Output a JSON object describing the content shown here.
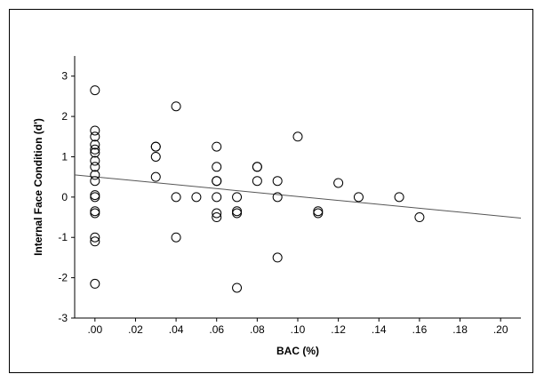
{
  "chart_data": {
    "type": "scatter",
    "title": "",
    "xlabel": "BAC (%)",
    "ylabel": "Internal Face Condition (d')",
    "xlim": [
      -0.01,
      0.21
    ],
    "ylim": [
      -3,
      3.5
    ],
    "x_ticks": [
      0,
      0.02,
      0.04,
      0.06,
      0.08,
      0.1,
      0.12,
      0.14,
      0.16,
      0.18,
      0.2
    ],
    "x_tick_labels": [
      ".00",
      ".02",
      ".04",
      ".06",
      ".08",
      ".10",
      ".12",
      ".14",
      ".16",
      ".18",
      ".20"
    ],
    "y_ticks": [
      -3,
      -2,
      -1,
      0,
      1,
      2,
      3
    ],
    "y_tick_labels": [
      "-3",
      "-2",
      "-1",
      "0",
      "1",
      "2",
      "3"
    ],
    "grid": false,
    "legend": "none",
    "marker_color": "#000000",
    "fit_line_color": "#555555",
    "fit_line": {
      "x": [
        -0.01,
        0.21
      ],
      "y": [
        0.55,
        -0.52
      ]
    },
    "points": [
      {
        "x": 0.0,
        "y": 2.65
      },
      {
        "x": 0.0,
        "y": 1.65
      },
      {
        "x": 0.0,
        "y": 1.5
      },
      {
        "x": 0.0,
        "y": 1.3
      },
      {
        "x": 0.0,
        "y": 1.18
      },
      {
        "x": 0.0,
        "y": 1.1
      },
      {
        "x": 0.0,
        "y": 0.9
      },
      {
        "x": 0.0,
        "y": 0.75
      },
      {
        "x": 0.0,
        "y": 0.55
      },
      {
        "x": 0.0,
        "y": 0.4
      },
      {
        "x": 0.0,
        "y": 0.05
      },
      {
        "x": 0.0,
        "y": 0.0
      },
      {
        "x": 0.0,
        "y": -0.35
      },
      {
        "x": 0.0,
        "y": -0.4
      },
      {
        "x": 0.0,
        "y": -1.0
      },
      {
        "x": 0.0,
        "y": -1.1
      },
      {
        "x": 0.0,
        "y": -2.15
      },
      {
        "x": 0.03,
        "y": 1.25
      },
      {
        "x": 0.03,
        "y": 1.25
      },
      {
        "x": 0.03,
        "y": 1.0
      },
      {
        "x": 0.03,
        "y": 0.5
      },
      {
        "x": 0.04,
        "y": 2.25
      },
      {
        "x": 0.04,
        "y": 0.0
      },
      {
        "x": 0.04,
        "y": -1.0
      },
      {
        "x": 0.05,
        "y": 0.0
      },
      {
        "x": 0.06,
        "y": 1.25
      },
      {
        "x": 0.06,
        "y": 0.75
      },
      {
        "x": 0.06,
        "y": 0.4
      },
      {
        "x": 0.06,
        "y": 0.4
      },
      {
        "x": 0.06,
        "y": 0.0
      },
      {
        "x": 0.06,
        "y": -0.4
      },
      {
        "x": 0.06,
        "y": -0.5
      },
      {
        "x": 0.07,
        "y": 0.0
      },
      {
        "x": 0.07,
        "y": -0.35
      },
      {
        "x": 0.07,
        "y": -0.4
      },
      {
        "x": 0.07,
        "y": -2.25
      },
      {
        "x": 0.08,
        "y": 0.75
      },
      {
        "x": 0.08,
        "y": 0.75
      },
      {
        "x": 0.08,
        "y": 0.4
      },
      {
        "x": 0.09,
        "y": 0.4
      },
      {
        "x": 0.09,
        "y": 0.0
      },
      {
        "x": 0.09,
        "y": -1.5
      },
      {
        "x": 0.1,
        "y": 1.5
      },
      {
        "x": 0.11,
        "y": -0.35
      },
      {
        "x": 0.11,
        "y": -0.4
      },
      {
        "x": 0.12,
        "y": 0.35
      },
      {
        "x": 0.13,
        "y": 0.0
      },
      {
        "x": 0.15,
        "y": 0.0
      },
      {
        "x": 0.16,
        "y": -0.5
      }
    ]
  }
}
